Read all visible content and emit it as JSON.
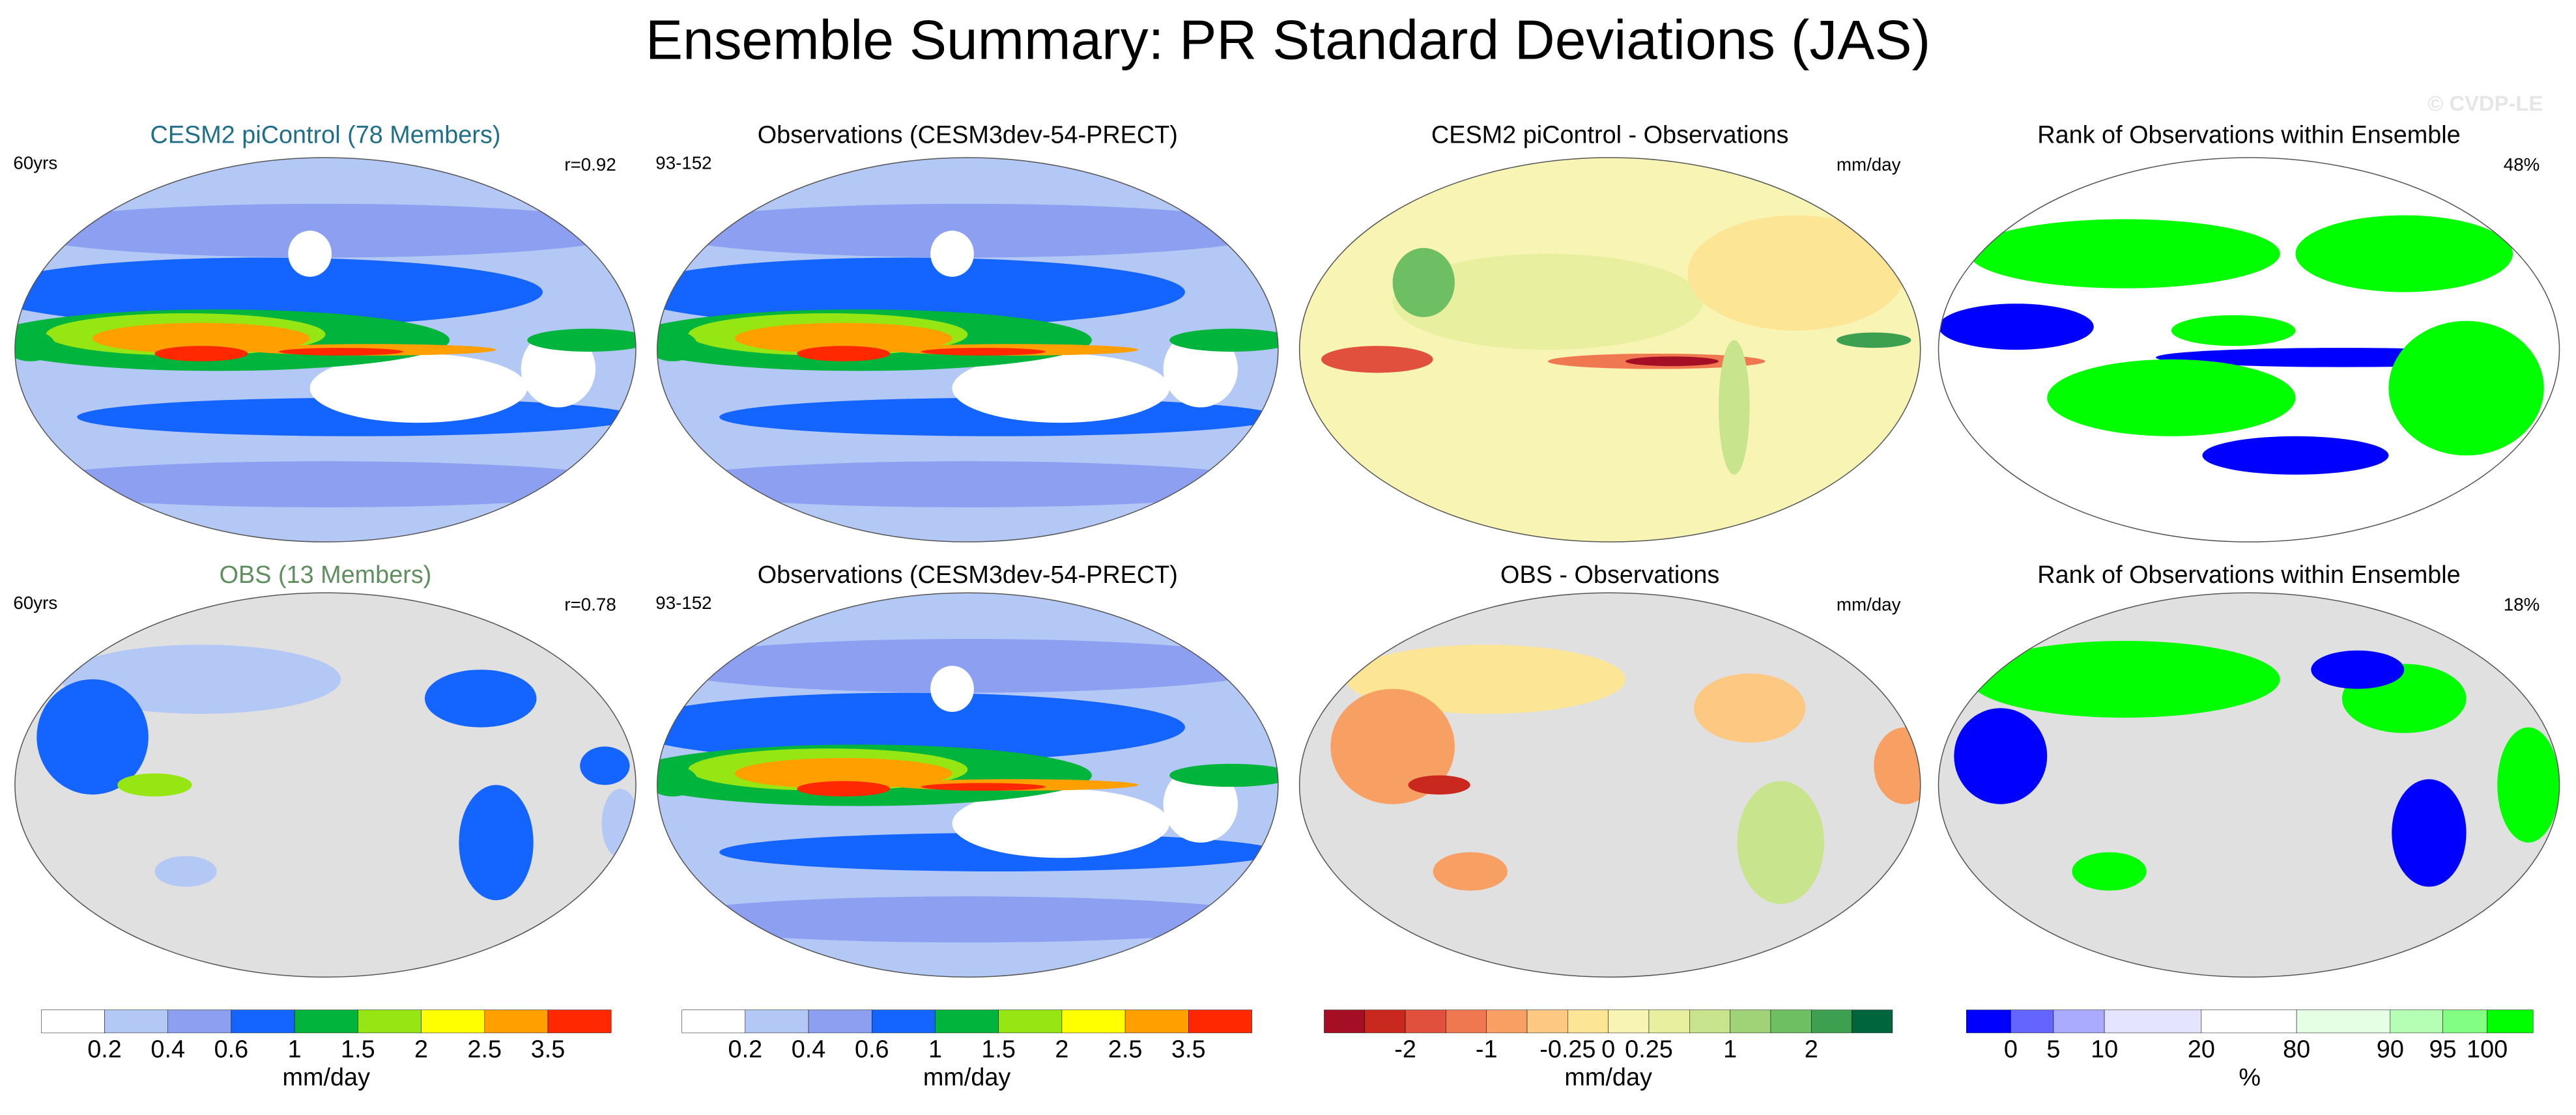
{
  "title": "Ensemble Summary: PR Standard Deviations (JAS)",
  "watermark": "© CVDP-LE",
  "panels": [
    {
      "title": "CESM2 piControl (78 Members)",
      "title_color": "#1f6f8b",
      "left": "60yrs",
      "right": "r=0.92"
    },
    {
      "title": "Observations (CESM3dev-54-PRECT)",
      "title_color": "#000000",
      "left": "93-152",
      "right": null
    },
    {
      "title": "CESM2 piControl - Observations",
      "title_color": "#000000",
      "left": null,
      "right": "mm/day"
    },
    {
      "title": "Rank of Observations within Ensemble",
      "title_color": "#000000",
      "left": null,
      "right": "48%"
    },
    {
      "title": "OBS (13 Members)",
      "title_color": "#5f8f5f",
      "left": "60yrs",
      "right": "r=0.78"
    },
    {
      "title": "Observations (CESM3dev-54-PRECT)",
      "title_color": "#000000",
      "left": "93-152",
      "right": null
    },
    {
      "title": "OBS - Observations",
      "title_color": "#000000",
      "left": null,
      "right": "mm/day"
    },
    {
      "title": "Rank of Observations within Ensemble",
      "title_color": "#000000",
      "left": null,
      "right": "18%"
    }
  ],
  "colorbars": [
    {
      "colors": [
        "#ffffff",
        "#b4c8f5",
        "#8c9ff0",
        "#1464ff",
        "#00b43c",
        "#96e614",
        "#ffff00",
        "#ffa000",
        "#ff2800"
      ],
      "labels": [
        0.2,
        0.4,
        0.6,
        1,
        1.5,
        2,
        2.5,
        3.5
      ],
      "unit": "mm/day"
    },
    {
      "colors": [
        "#ffffff",
        "#b4c8f5",
        "#8c9ff0",
        "#1464ff",
        "#00b43c",
        "#96e614",
        "#ffff00",
        "#ffa000",
        "#ff2800"
      ],
      "labels": [
        0.2,
        0.4,
        0.6,
        1,
        1.5,
        2,
        2.5,
        3.5
      ],
      "unit": "mm/day"
    },
    {
      "colors": [
        "#a50f26",
        "#c8281e",
        "#e0503c",
        "#f07850",
        "#f8a064",
        "#fcc882",
        "#fce696",
        "#f8f4b4",
        "#e8f0a0",
        "#c8e48c",
        "#a0d278",
        "#6ebe64",
        "#3ca050",
        "#00643c"
      ],
      "labels": [
        null,
        -2,
        null,
        -1,
        null,
        -0.25,
        0,
        0.25,
        null,
        1,
        null,
        2,
        null
      ],
      "unit": "mm/day"
    },
    {
      "colors": [
        "#0000ff",
        "#6464ff",
        "#aaaaff",
        "#e4e4ff",
        "#ffffff",
        "#e4ffe4",
        "#b4ffb4",
        "#82ff82",
        "#00ff00"
      ],
      "labels": [
        0,
        5,
        10,
        20,
        80,
        90,
        95,
        100
      ],
      "unit": "%"
    }
  ]
}
